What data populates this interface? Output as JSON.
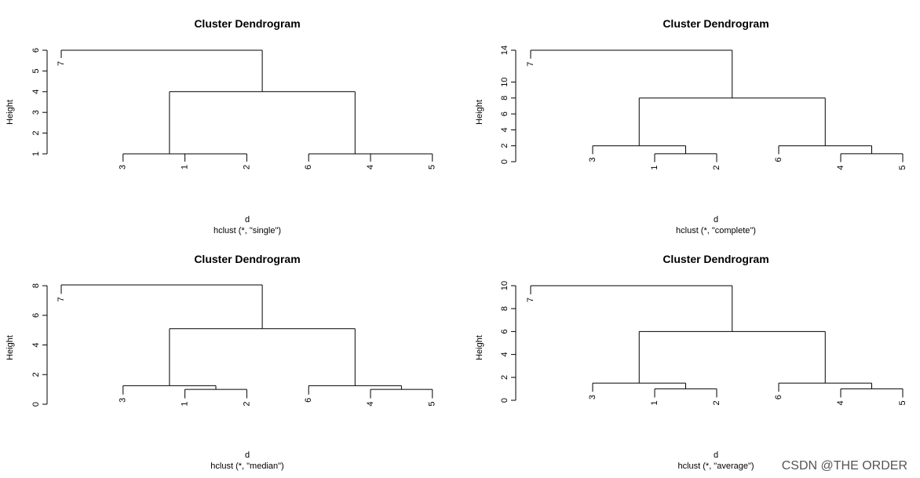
{
  "watermark": "CSDN @THE ORDER",
  "chart_data": [
    {
      "type": "dendrogram",
      "title": "Cluster Dendrogram",
      "ylabel": "Height",
      "xlabel": "d",
      "sublabel": "hclust (*, \"single\")",
      "yticks": [
        1,
        2,
        3,
        4,
        5,
        6
      ],
      "ylim": [
        1,
        6
      ],
      "leaves": [
        "7",
        "3",
        "1",
        "2",
        "6",
        "4",
        "5"
      ],
      "merges": [
        {
          "left": "1",
          "right": "2",
          "height": 1
        },
        {
          "left": "3",
          "right": "c1",
          "height": 1
        },
        {
          "left": "4",
          "right": "5",
          "height": 1
        },
        {
          "left": "6",
          "right": "c3",
          "height": 1
        },
        {
          "left": "c2",
          "right": "c4",
          "height": 4
        },
        {
          "left": "7",
          "right": "c5",
          "height": 6
        }
      ]
    },
    {
      "type": "dendrogram",
      "title": "Cluster Dendrogram",
      "ylabel": "Height",
      "xlabel": "d",
      "sublabel": "hclust (*, \"complete\")",
      "yticks": [
        0,
        2,
        4,
        6,
        8,
        10,
        14
      ],
      "ylim": [
        0,
        14
      ],
      "leaves": [
        "7",
        "3",
        "1",
        "2",
        "6",
        "4",
        "5"
      ],
      "merges": [
        {
          "left": "1",
          "right": "2",
          "height": 1
        },
        {
          "left": "3",
          "right": "c1",
          "height": 2
        },
        {
          "left": "4",
          "right": "5",
          "height": 1
        },
        {
          "left": "6",
          "right": "c3",
          "height": 2
        },
        {
          "left": "c2",
          "right": "c4",
          "height": 8
        },
        {
          "left": "7",
          "right": "c5",
          "height": 14
        }
      ]
    },
    {
      "type": "dendrogram",
      "title": "Cluster Dendrogram",
      "ylabel": "Height",
      "xlabel": "d",
      "sublabel": "hclust (*, \"median\")",
      "yticks": [
        0,
        2,
        4,
        6,
        8
      ],
      "ylim": [
        0,
        8
      ],
      "leaves": [
        "7",
        "3",
        "1",
        "2",
        "6",
        "4",
        "5"
      ],
      "merges": [
        {
          "left": "1",
          "right": "2",
          "height": 1
        },
        {
          "left": "3",
          "right": "c1",
          "height": 1.25
        },
        {
          "left": "4",
          "right": "5",
          "height": 1
        },
        {
          "left": "6",
          "right": "c3",
          "height": 1.25
        },
        {
          "left": "c2",
          "right": "c4",
          "height": 5.1
        },
        {
          "left": "7",
          "right": "c5",
          "height": 8.05
        }
      ]
    },
    {
      "type": "dendrogram",
      "title": "Cluster Dendrogram",
      "ylabel": "Height",
      "xlabel": "d",
      "sublabel": "hclust (*, \"average\")",
      "yticks": [
        0,
        2,
        4,
        6,
        8,
        10
      ],
      "ylim": [
        0,
        10
      ],
      "leaves": [
        "7",
        "3",
        "1",
        "2",
        "6",
        "4",
        "5"
      ],
      "merges": [
        {
          "left": "1",
          "right": "2",
          "height": 1
        },
        {
          "left": "3",
          "right": "c1",
          "height": 1.5
        },
        {
          "left": "4",
          "right": "5",
          "height": 1
        },
        {
          "left": "6",
          "right": "c3",
          "height": 1.5
        },
        {
          "left": "c2",
          "right": "c4",
          "height": 6
        },
        {
          "left": "7",
          "right": "c5",
          "height": 10
        }
      ]
    }
  ]
}
